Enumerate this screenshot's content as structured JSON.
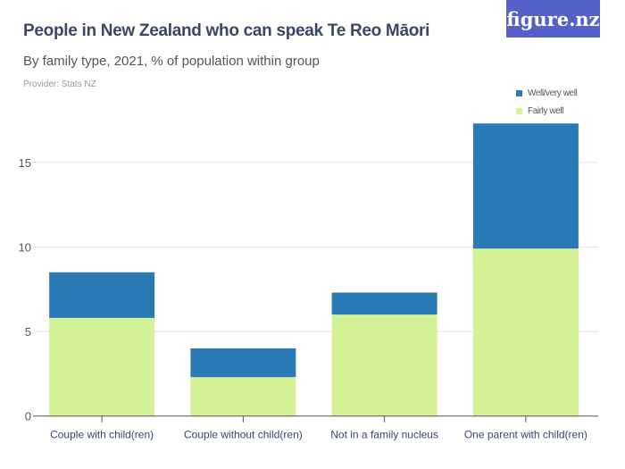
{
  "header": {
    "title": "People in New Zealand who can speak Te Reo Māori",
    "subtitle": "By family type, 2021, % of population within group",
    "provider": "Provider: Stats NZ",
    "logo": "figure.nz"
  },
  "colors": {
    "well": "#2a7ab5",
    "fairly": "#d4f397",
    "logo_bg": "#5561c9"
  },
  "chart_data": {
    "type": "bar",
    "stacked": true,
    "categories": [
      "Couple with child(ren)",
      "Couple without child(ren)",
      "Not in a family nucleus",
      "One parent with child(ren)"
    ],
    "series": [
      {
        "name": "Fairly well",
        "values": [
          5.8,
          2.3,
          6.0,
          9.9
        ]
      },
      {
        "name": "Well/very well",
        "values": [
          2.7,
          1.7,
          1.3,
          7.4
        ]
      }
    ],
    "yticks": [
      "0",
      "5",
      "10",
      "15"
    ],
    "ylim": [
      0,
      17.5
    ],
    "grid": true,
    "legend": "top-right",
    "legend_entries": [
      "Well/very well",
      "Fairly well"
    ]
  }
}
